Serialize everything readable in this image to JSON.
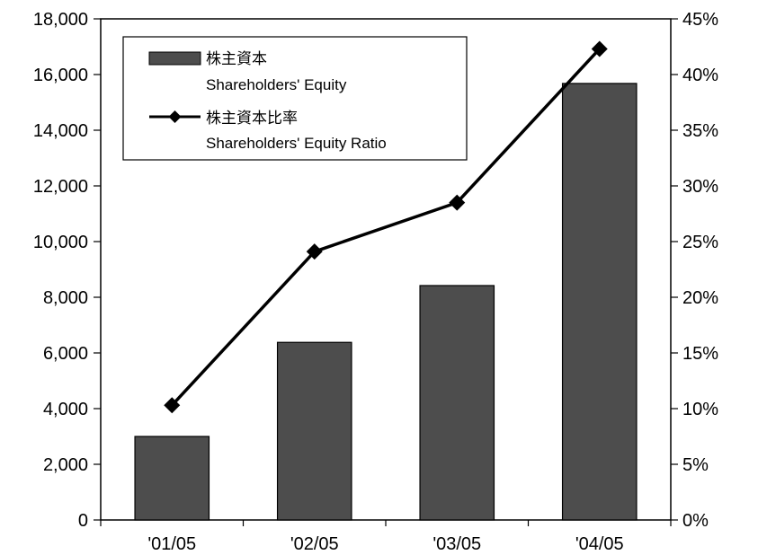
{
  "chart_data": {
    "type": "bar",
    "title": "",
    "xlabel": "",
    "ylabel": "",
    "categories": [
      "'01/05",
      "'02/05",
      "'03/05",
      "'04/05"
    ],
    "series": [
      {
        "name": "株主資本",
        "name_en": "Shareholders' Equity",
        "type": "bar",
        "axis": "left",
        "color": "#4d4d4d",
        "values": [
          3000,
          6380,
          8420,
          15680
        ]
      },
      {
        "name": "株主資本比率",
        "name_en": "Shareholders' Equity Ratio",
        "type": "line",
        "axis": "right",
        "color": "#000000",
        "marker": "diamond",
        "values": [
          10.3,
          24.1,
          28.5,
          42.3
        ]
      }
    ],
    "ylim": [
      0,
      18000
    ],
    "y_ticks": [
      "0",
      "2,000",
      "4,000",
      "6,000",
      "8,000",
      "10,000",
      "12,000",
      "14,000",
      "16,000",
      "18,000"
    ],
    "y2lim": [
      0,
      45
    ],
    "y2_ticks": [
      "0%",
      "5%",
      "10%",
      "15%",
      "20%",
      "25%",
      "30%",
      "35%",
      "40%",
      "45%"
    ],
    "grid": false,
    "legend_position": "top-left"
  }
}
